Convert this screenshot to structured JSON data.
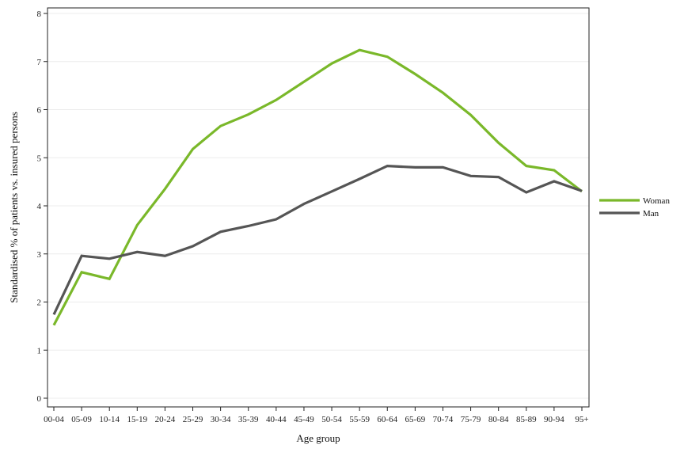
{
  "chart_data": {
    "type": "line",
    "title": "",
    "xlabel": "Age group",
    "ylabel": "Standardised % of patients vs. insured persons",
    "ylim": [
      0,
      8
    ],
    "yticks": [
      0,
      1,
      2,
      3,
      4,
      5,
      6,
      7,
      8
    ],
    "grid": true,
    "legend_position": "right",
    "categories": [
      "00-04",
      "05-09",
      "10-14",
      "15-19",
      "20-24",
      "25-29",
      "30-34",
      "35-39",
      "40-44",
      "45-49",
      "50-54",
      "55-59",
      "60-64",
      "65-69",
      "70-74",
      "75-79",
      "80-84",
      "85-89",
      "90-94",
      "95+"
    ],
    "series": [
      {
        "name": "Woman",
        "color": "#7ab82a",
        "values": [
          1.52,
          2.62,
          2.48,
          3.6,
          4.35,
          5.18,
          5.66,
          5.9,
          6.2,
          6.58,
          6.96,
          7.24,
          7.1,
          6.74,
          6.35,
          5.89,
          5.31,
          4.83,
          4.74,
          4.3
        ]
      },
      {
        "name": "Man",
        "color": "#555555",
        "values": [
          1.74,
          2.96,
          2.9,
          3.04,
          2.96,
          3.16,
          3.46,
          3.58,
          3.72,
          4.04,
          4.3,
          4.56,
          4.83,
          4.8,
          4.8,
          4.62,
          4.6,
          4.28,
          4.51,
          4.31
        ]
      }
    ]
  }
}
